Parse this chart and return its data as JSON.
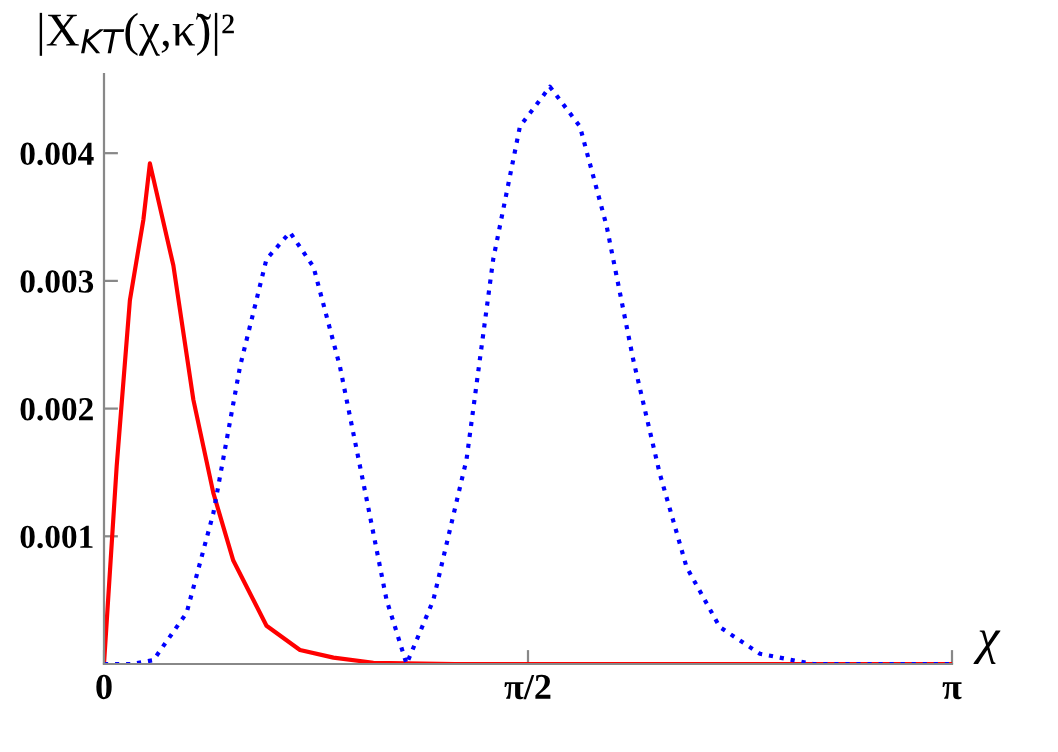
{
  "chart_data": {
    "type": "line",
    "ylabel": "|X$_{KT}$(χ,κ̃)|²",
    "xlabel": "χ",
    "xlim": [
      0,
      3.1416
    ],
    "ylim": [
      0,
      0.00462
    ],
    "xticks": [
      0,
      {
        "value": 1.5708,
        "label": "π/2"
      },
      {
        "value": 3.1416,
        "label": "π"
      }
    ],
    "yticks": [
      0.001,
      0.002,
      0.003,
      0.004
    ],
    "grid": false,
    "series": [
      {
        "color": "#ff0000",
        "line_style": "solid",
        "x": [
          0,
          0.047,
          0.096,
          0.146,
          0.17,
          0.257,
          0.331,
          0.405,
          0.479,
          0.602,
          0.726,
          0.85,
          0.998,
          1.3,
          3.1416
        ],
        "values": [
          0,
          0.00155,
          0.00285,
          0.00348,
          0.00392,
          0.00312,
          0.00207,
          0.00134,
          0.00081,
          0.0003,
          0.00011,
          5e-05,
          1e-05,
          0,
          0
        ]
      },
      {
        "color": "#0000ff",
        "line_style": "dotted",
        "x": [
          0,
          0.1,
          0.183,
          0.306,
          0.405,
          0.504,
          0.602,
          0.689,
          0.776,
          0.874,
          0.973,
          1.047,
          1.121,
          1.22,
          1.343,
          1.442,
          1.541,
          1.652,
          1.763,
          1.862,
          1.961,
          2.059,
          2.158,
          2.281,
          2.43,
          2.627,
          3.1416
        ],
        "values": [
          0,
          0,
          3e-05,
          0.0004,
          0.00118,
          0.00233,
          0.00317,
          0.00338,
          0.00311,
          0.00233,
          0.00129,
          0.0005,
          0,
          0.0005,
          0.0016,
          0.00317,
          0.00421,
          0.00452,
          0.00421,
          0.00343,
          0.00238,
          0.00149,
          0.00076,
          0.00029,
          8e-05,
          0,
          0
        ]
      }
    ]
  }
}
